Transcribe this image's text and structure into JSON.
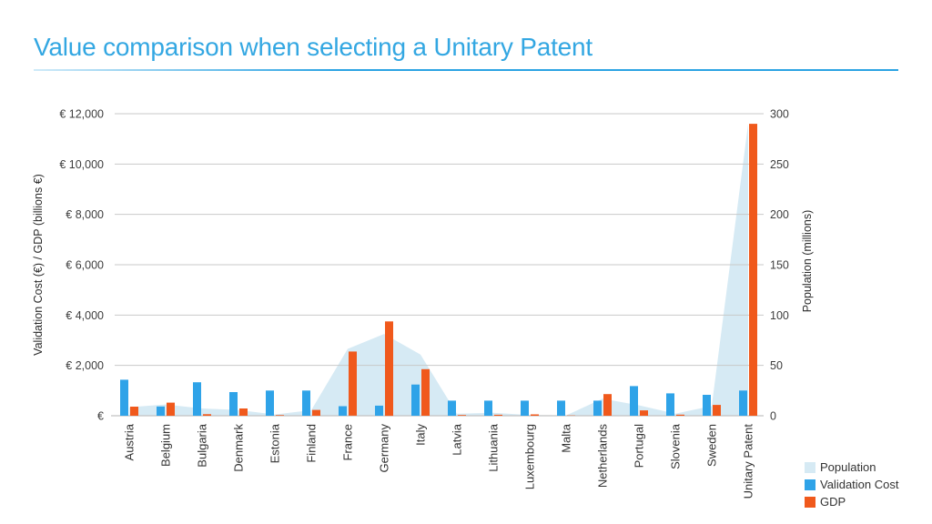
{
  "chart_data": {
    "type": "combo-bar-area",
    "title": "Value comparison when selecting a Unitary Patent",
    "title_color": "#33A7E2",
    "categories": [
      "Austria",
      "Belgium",
      "Bulgaria",
      "Denmark",
      "Estonia",
      "Finland",
      "France",
      "Germany",
      "Italy",
      "Latvia",
      "Lithuania",
      "Luxembourg",
      "Malta",
      "Netherlands",
      "Portugal",
      "Slovenia",
      "Sweden",
      "Unitary Patent"
    ],
    "series": [
      {
        "name": "Population",
        "type": "area",
        "axis": "right",
        "color": "#D6EAF4",
        "values": [
          8.5,
          11.2,
          7.2,
          5.7,
          1.3,
          5.5,
          66.4,
          81.2,
          60.8,
          2.0,
          2.9,
          0.6,
          0.4,
          16.9,
          10.4,
          2.1,
          9.7,
          290
        ]
      },
      {
        "name": "Validation Cost",
        "type": "bar",
        "axis": "left",
        "color": "#2FA3E8",
        "values": [
          1430,
          370,
          1330,
          940,
          1000,
          1000,
          380,
          400,
          1240,
          600,
          600,
          600,
          600,
          600,
          1180,
          890,
          830,
          1000
        ]
      },
      {
        "name": "GDP",
        "type": "bar",
        "axis": "left",
        "color": "#F0591C",
        "values": [
          360,
          520,
          60,
          290,
          25,
          230,
          2550,
          3750,
          1850,
          30,
          40,
          55,
          10,
          860,
          215,
          45,
          430,
          11600
        ]
      }
    ],
    "left_axis": {
      "label": "Validation Cost (€) / GDP (billions €)",
      "ticks": [
        "€ 12,000",
        "€ 10,000",
        "€ 8,000",
        "€ 6,000",
        "€ 4,000",
        "€ 2,000",
        "€"
      ],
      "tick_values": [
        12000,
        10000,
        8000,
        6000,
        4000,
        2000,
        0
      ],
      "min": 0,
      "max": 12000
    },
    "right_axis": {
      "label": "Population (millions)",
      "ticks": [
        "300",
        "250",
        "200",
        "150",
        "100",
        "50",
        "0"
      ],
      "tick_values": [
        300,
        250,
        200,
        150,
        100,
        50,
        0
      ],
      "min": 0,
      "max": 300
    },
    "legend": {
      "position": "bottom-right",
      "items": [
        {
          "label": "Population",
          "color": "#D6EAF4"
        },
        {
          "label": "Validation Cost",
          "color": "#2FA3E8"
        },
        {
          "label": "GDP",
          "color": "#F0591C"
        }
      ]
    },
    "grid": true,
    "grid_color": "#c9c9c9"
  }
}
